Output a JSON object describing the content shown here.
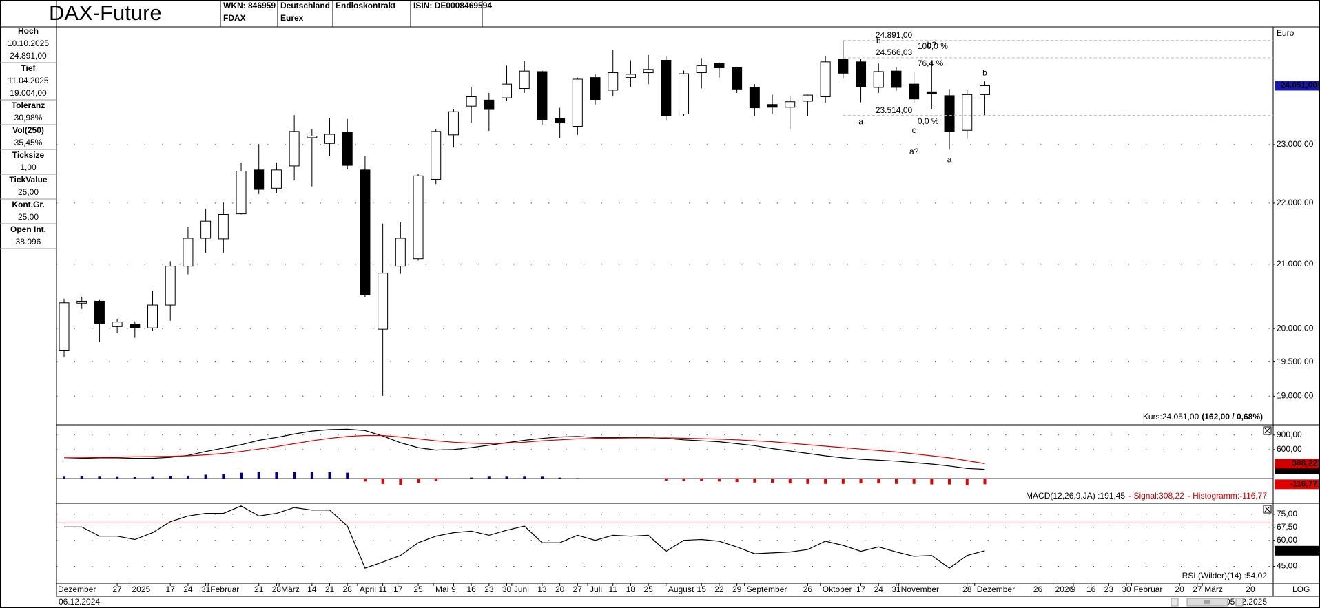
{
  "header": {
    "title": "DAX-Future",
    "cells": [
      [
        "WKN: 846959",
        "FDAX"
      ],
      [
        "Deutschland",
        "Eurex"
      ],
      [
        "Endloskontrakt"
      ],
      [
        "ISIN: DE0008469594"
      ]
    ]
  },
  "sidebar": [
    {
      "label": "Hoch",
      "values": [
        "10.10.2025",
        "24.891,00"
      ]
    },
    {
      "label": "Tief",
      "values": [
        "11.04.2025",
        "19.004,00"
      ]
    },
    {
      "label": "Toleranz",
      "values": [
        "30,98%"
      ]
    },
    {
      "label": "Vol(250)",
      "values": [
        "35,45%"
      ]
    },
    {
      "label": "Ticksize",
      "values": [
        "1,00"
      ]
    },
    {
      "label": "TickValue",
      "values": [
        "25,00"
      ]
    },
    {
      "label": "Kont.Gr.",
      "values": [
        "25,00"
      ]
    },
    {
      "label": "Open Int.",
      "values": [
        "38.096"
      ]
    }
  ],
  "footer": {
    "start": "06.12.2024",
    "end": "05.12.2025",
    "scale_label": "LOG"
  },
  "chart_data": [
    {
      "type": "candlestick",
      "unit": "Euro",
      "log": true,
      "grid": true,
      "up_color": "#ffffff",
      "down_color": "#000000",
      "xlim": [
        "2024-12-03",
        "2026-03-29"
      ],
      "x": [
        "2024-12-06",
        "2024-12-13",
        "2024-12-20",
        "2024-12-27",
        "2025-01-03",
        "2025-01-10",
        "2025-01-17",
        "2025-01-24",
        "2025-01-31",
        "2025-02-07",
        "2025-02-14",
        "2025-02-21",
        "2025-02-28",
        "2025-03-07",
        "2025-03-14",
        "2025-03-21",
        "2025-03-28",
        "2025-04-04",
        "2025-04-11",
        "2025-04-18",
        "2025-04-25",
        "2025-05-02",
        "2025-05-09",
        "2025-05-16",
        "2025-05-23",
        "2025-05-30",
        "2025-06-06",
        "2025-06-13",
        "2025-06-20",
        "2025-06-27",
        "2025-07-04",
        "2025-07-11",
        "2025-07-18",
        "2025-07-25",
        "2025-08-01",
        "2025-08-08",
        "2025-08-15",
        "2025-08-22",
        "2025-08-29",
        "2025-09-05",
        "2025-09-12",
        "2025-09-19",
        "2025-09-26",
        "2025-10-03",
        "2025-10-10",
        "2025-10-17",
        "2025-10-24",
        "2025-10-31",
        "2025-11-07",
        "2025-11-14",
        "2025-11-21",
        "2025-11-28",
        "2025-12-05"
      ],
      "open": [
        19665,
        20390,
        20420,
        20030,
        20070,
        20010,
        20360,
        20970,
        21420,
        21410,
        21820,
        22560,
        22250,
        22630,
        23120,
        23020,
        23210,
        22560,
        19990,
        20970,
        21090,
        22400,
        23170,
        23680,
        23790,
        23830,
        24000,
        24310,
        23460,
        23320,
        24200,
        23970,
        24200,
        24290,
        24520,
        23540,
        24290,
        24460,
        24380,
        24020,
        23710,
        23660,
        23770,
        23850,
        24540,
        24490,
        24020,
        24320,
        24080,
        23940,
        23870,
        23250,
        23889
      ],
      "high": [
        20460,
        20490,
        20450,
        20150,
        20110,
        20580,
        21050,
        21610,
        21900,
        22010,
        22690,
        23010,
        22690,
        23520,
        23270,
        23470,
        23450,
        22800,
        21660,
        21680,
        22500,
        23270,
        23620,
        24020,
        23920,
        24420,
        24510,
        24330,
        23650,
        24200,
        24260,
        24720,
        24520,
        24620,
        24600,
        24330,
        24560,
        24480,
        24400,
        24080,
        23890,
        23860,
        23890,
        24600,
        24891,
        24540,
        24460,
        24390,
        24290,
        24520,
        23990,
        23970,
        24130
      ],
      "low": [
        19570,
        20300,
        19800,
        19930,
        19860,
        19960,
        20120,
        20840,
        21180,
        21180,
        21810,
        22150,
        22160,
        22380,
        22280,
        22800,
        22570,
        20480,
        19004,
        20850,
        21060,
        22320,
        22950,
        23380,
        23240,
        23770,
        23920,
        23350,
        23120,
        23170,
        23710,
        23860,
        24030,
        24080,
        23420,
        23510,
        24000,
        24200,
        23920,
        23500,
        23540,
        23270,
        23510,
        23740,
        24180,
        23750,
        23920,
        23960,
        23740,
        23620,
        22910,
        23100,
        23520
      ],
      "close": [
        20395,
        20420,
        20080,
        20100,
        20010,
        20360,
        20970,
        21420,
        21700,
        21810,
        22540,
        22230,
        22560,
        23230,
        23150,
        23180,
        22640,
        20520,
        20860,
        21420,
        22460,
        23230,
        23580,
        23850,
        23620,
        24080,
        24320,
        23440,
        23380,
        24170,
        23800,
        24290,
        24260,
        24350,
        23510,
        24270,
        24420,
        24380,
        23990,
        23650,
        23660,
        23760,
        23880,
        24490,
        24280,
        24030,
        24310,
        24020,
        23810,
        23910,
        23230,
        23889,
        24051
      ],
      "ylim": [
        18590,
        25150
      ],
      "yticks": [
        {
          "value": 19000,
          "label": "19.000,00"
        },
        {
          "value": 19500,
          "label": "19.500,00"
        },
        {
          "value": 20000,
          "label": "20.000,00"
        },
        {
          "value": 21000,
          "label": "21.000,00"
        },
        {
          "value": 22000,
          "label": "22.000,00"
        },
        {
          "value": 23000,
          "label": "23.000,00"
        }
      ],
      "xticks": [
        {
          "value": "2024-12-01",
          "label": "Dezember"
        },
        {
          "value": "2024-12-27",
          "label": "27"
        },
        {
          "value": "2025-01-01",
          "label": "2025"
        },
        {
          "value": "2025-01-17",
          "label": "17"
        },
        {
          "value": "2025-01-24",
          "label": "24"
        },
        {
          "value": "2025-01-31",
          "label": "31"
        },
        {
          "value": "2025-02-01",
          "label": "Februar"
        },
        {
          "value": "2025-02-21",
          "label": "21"
        },
        {
          "value": "2025-02-28",
          "label": "28"
        },
        {
          "value": "2025-03-01",
          "label": "März"
        },
        {
          "value": "2025-03-14",
          "label": "14"
        },
        {
          "value": "2025-03-21",
          "label": "21"
        },
        {
          "value": "2025-03-28",
          "label": "28"
        },
        {
          "value": "2025-04-01",
          "label": "April"
        },
        {
          "value": "2025-04-11",
          "label": "11"
        },
        {
          "value": "2025-04-17",
          "label": "17"
        },
        {
          "value": "2025-04-25",
          "label": "25"
        },
        {
          "value": "2025-05-01",
          "label": "Mai"
        },
        {
          "value": "2025-05-09",
          "label": "9"
        },
        {
          "value": "2025-05-16",
          "label": "16"
        },
        {
          "value": "2025-05-23",
          "label": "23"
        },
        {
          "value": "2025-05-30",
          "label": "30"
        },
        {
          "value": "2025-06-01",
          "label": "Juni"
        },
        {
          "value": "2025-06-13",
          "label": "13"
        },
        {
          "value": "2025-06-20",
          "label": "20"
        },
        {
          "value": "2025-06-27",
          "label": "27"
        },
        {
          "value": "2025-07-01",
          "label": "Juli"
        },
        {
          "value": "2025-07-11",
          "label": "11"
        },
        {
          "value": "2025-07-18",
          "label": "18"
        },
        {
          "value": "2025-07-25",
          "label": "25"
        },
        {
          "value": "2025-08-01",
          "label": "August"
        },
        {
          "value": "2025-08-15",
          "label": "15"
        },
        {
          "value": "2025-08-22",
          "label": "22"
        },
        {
          "value": "2025-08-29",
          "label": "29"
        },
        {
          "value": "2025-09-01",
          "label": "September"
        },
        {
          "value": "2025-09-26",
          "label": "26"
        },
        {
          "value": "2025-10-01",
          "label": "Oktober"
        },
        {
          "value": "2025-10-17",
          "label": "17"
        },
        {
          "value": "2025-10-24",
          "label": "24"
        },
        {
          "value": "2025-10-31",
          "label": "31"
        },
        {
          "value": "2025-11-01",
          "label": "November"
        },
        {
          "value": "2025-11-28",
          "label": "28"
        },
        {
          "value": "2025-12-01",
          "label": "Dezember"
        },
        {
          "value": "2025-12-26",
          "label": "26"
        },
        {
          "value": "2026-01-01",
          "label": "2026"
        },
        {
          "value": "2026-01-09",
          "label": "9"
        },
        {
          "value": "2026-01-16",
          "label": "16"
        },
        {
          "value": "2026-01-23",
          "label": "23"
        },
        {
          "value": "2026-01-30",
          "label": "30"
        },
        {
          "value": "2026-02-01",
          "label": "Februar"
        },
        {
          "value": "2026-02-20",
          "label": "20"
        },
        {
          "value": "2026-02-27",
          "label": "27"
        },
        {
          "value": "2026-03-01",
          "label": "März"
        },
        {
          "value": "2026-03-20",
          "label": "20"
        }
      ],
      "last_price": {
        "value": 24051,
        "label": "24.051,00"
      },
      "quote": {
        "price": "Kurs:24.051,00",
        "change": "(162,00 / 0,68%)"
      },
      "fib_start": "2025-10-10",
      "fibonacci": [
        {
          "value": 24891,
          "label": "24.891,00",
          "level": "100,0 %"
        },
        {
          "value": 24566.03,
          "label": "24.566,03",
          "level": "76,4 %"
        },
        {
          "value": 23514,
          "label": "23.514,00",
          "level": "0,0 %"
        }
      ],
      "annotations": [
        {
          "text": "b",
          "x": "2025-10-24",
          "y": 24880,
          "color": "#1e8fd8"
        },
        {
          "text": "a",
          "x": "2025-10-17",
          "y": 23395,
          "color": "#1e8fd8"
        },
        {
          "text": "c",
          "x": "2025-11-07",
          "y": 23245,
          "color": "#1e8fd8"
        },
        {
          "text": "a?",
          "x": "2025-11-07",
          "y": 22870,
          "color": "#d0208a"
        },
        {
          "text": "b?",
          "x": "2025-11-14",
          "y": 24800,
          "color": "#d0208a"
        },
        {
          "text": "a",
          "x": "2025-11-21",
          "y": 22730,
          "color": "#1e8fd8"
        },
        {
          "text": "b",
          "x": "2025-12-05",
          "y": 24280,
          "color": "#1e8fd8"
        }
      ]
    },
    {
      "type": "macd",
      "grid": true,
      "ylim": [
        -510,
        1110
      ],
      "yticks": [
        {
          "value": 900,
          "label": "900,00"
        },
        {
          "value": 600,
          "label": "600,00"
        }
      ],
      "reference_lines": [
        {
          "value": 0,
          "color": "#000000"
        }
      ],
      "series": [
        {
          "style": "line",
          "legend": "MACD(12,26,9,JA) :191,45",
          "color": "#000000",
          "last_label": "191,45",
          "values": [
            410,
            420,
            430,
            430,
            420,
            420,
            440,
            480,
            560,
            630,
            700,
            790,
            850,
            920,
            980,
            1010,
            1020,
            990,
            880,
            740,
            640,
            590,
            600,
            640,
            690,
            740,
            790,
            830,
            860,
            870,
            850,
            850,
            845,
            845,
            830,
            800,
            780,
            760,
            720,
            680,
            620,
            570,
            520,
            470,
            430,
            400,
            380,
            360,
            330,
            300,
            260,
            210,
            191.45
          ]
        },
        {
          "style": "line",
          "legend": "- Signal:308,22",
          "color": "#d00000",
          "last_label": "308,22",
          "values": [
            440,
            440,
            440,
            445,
            450,
            455,
            460,
            470,
            490,
            520,
            560,
            610,
            660,
            720,
            780,
            830,
            870,
            890,
            890,
            860,
            820,
            780,
            750,
            730,
            720,
            730,
            750,
            780,
            800,
            820,
            830,
            835,
            840,
            840,
            840,
            835,
            825,
            815,
            800,
            780,
            760,
            730,
            700,
            670,
            640,
            610,
            580,
            550,
            510,
            470,
            430,
            370,
            308.22
          ]
        },
        {
          "style": "bar",
          "legend": "- Histogramm:-116,77",
          "color": "#e00000",
          "positive_color": "#00008b",
          "last_label": "-116,77",
          "values": [
            40,
            45,
            40,
            35,
            30,
            35,
            45,
            60,
            80,
            100,
            120,
            130,
            130,
            140,
            140,
            130,
            120,
            -60,
            -110,
            -130,
            -90,
            -40,
            0,
            20,
            40,
            40,
            40,
            40,
            20,
            10,
            0,
            0,
            0,
            0,
            -40,
            -50,
            -50,
            -60,
            -70,
            -80,
            -90,
            -100,
            -110,
            -110,
            -110,
            -100,
            -100,
            -110,
            -110,
            -120,
            -120,
            -140,
            -116.77
          ]
        }
      ]
    },
    {
      "type": "line",
      "grid": true,
      "ylim": [
        35.3,
        81.3
      ],
      "yticks": [
        {
          "value": 75,
          "label": "75,00"
        },
        {
          "value": 67.5,
          "label": "67,50"
        },
        {
          "value": 60,
          "label": "60,00"
        },
        {
          "value": 45,
          "label": "45,00"
        }
      ],
      "reference_lines": [
        {
          "value": 70,
          "color": "#d00000"
        }
      ],
      "series": [
        {
          "style": "line",
          "legend": "RSI (Wilder)(14) :54,02",
          "color": "#000000",
          "last_label": "54,02",
          "values": [
            67.7,
            67.7,
            62.4,
            62.4,
            60.5,
            64.4,
            70.7,
            74,
            75.5,
            75.5,
            79.8,
            74,
            75.5,
            78.9,
            77.4,
            77.4,
            68.2,
            44,
            47.5,
            51.3,
            58.6,
            62.4,
            64.4,
            65.3,
            62.9,
            65.8,
            68.2,
            58.6,
            58.6,
            62.9,
            60,
            62.9,
            62.4,
            62.9,
            53.7,
            60,
            60.5,
            59.5,
            56.2,
            52.3,
            52.8,
            53.3,
            54.7,
            59.5,
            57.1,
            53.7,
            56.2,
            53.3,
            50.8,
            51.3,
            44,
            51.3,
            54.02
          ]
        }
      ]
    }
  ]
}
